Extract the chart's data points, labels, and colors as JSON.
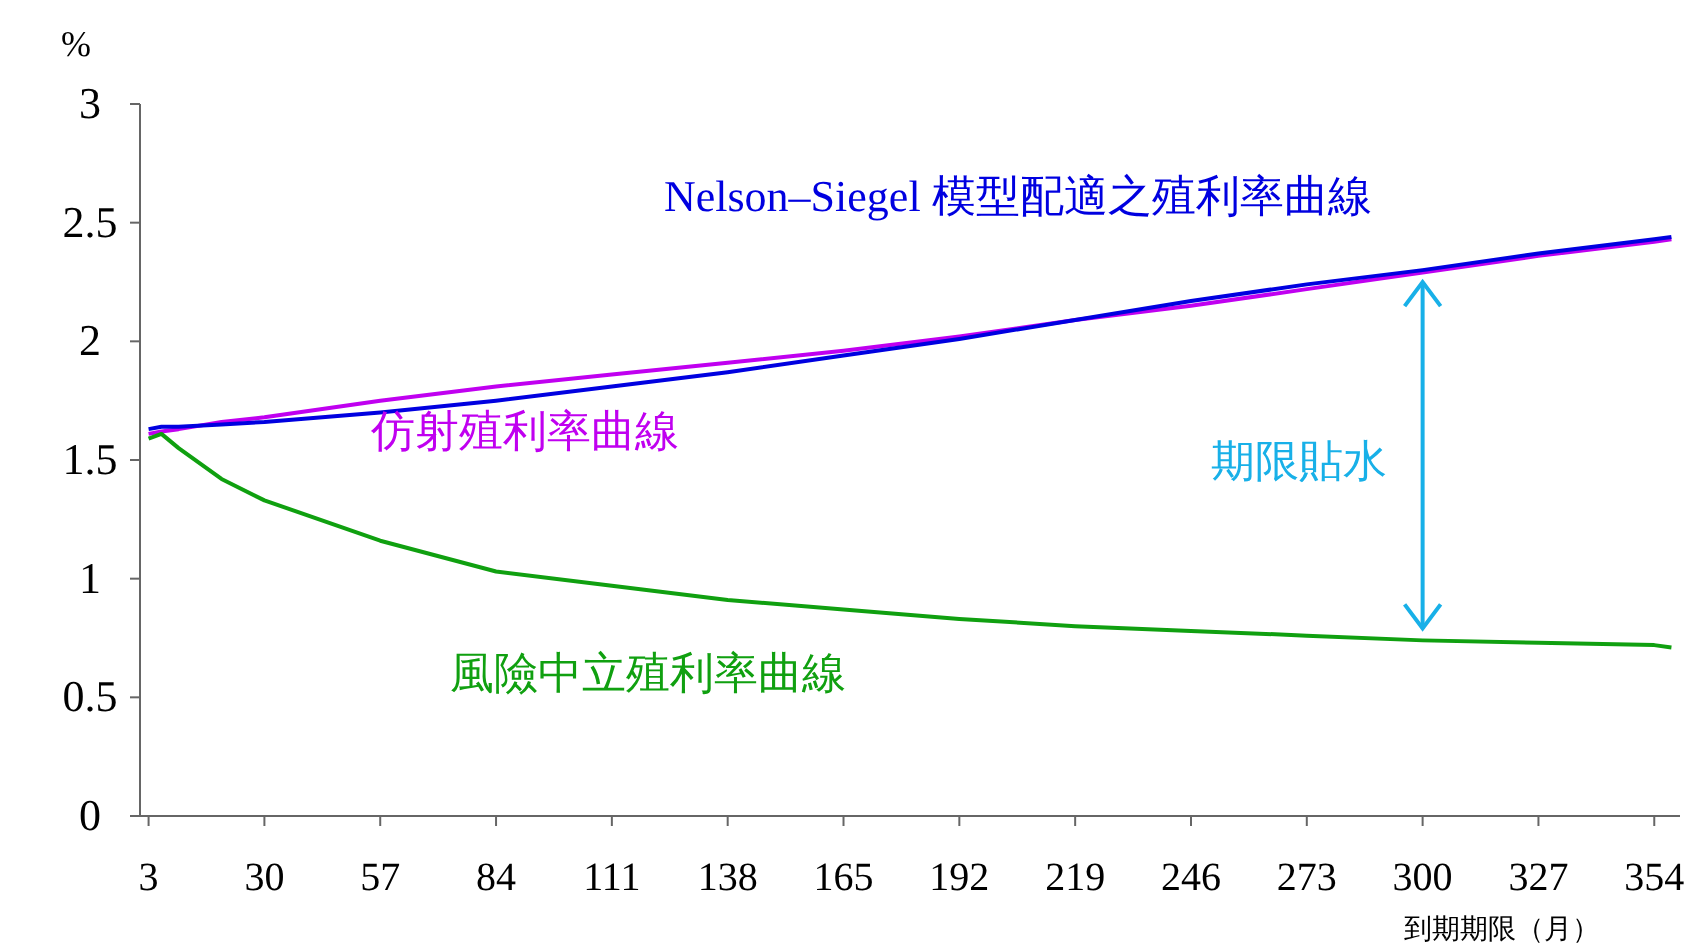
{
  "chart_data": {
    "type": "line",
    "xlabel": "到期期限（月）",
    "ylabel": "%",
    "x": [
      3,
      6,
      10,
      20,
      30,
      57,
      84,
      111,
      138,
      165,
      192,
      219,
      246,
      273,
      300,
      327,
      354,
      358
    ],
    "series": [
      {
        "name": "Nelson–Siegel 模型配適之殖利率曲線",
        "color": "#0000e0",
        "values": [
          1.63,
          1.64,
          1.64,
          1.65,
          1.66,
          1.7,
          1.75,
          1.81,
          1.87,
          1.94,
          2.01,
          2.09,
          2.17,
          2.24,
          2.3,
          2.37,
          2.43,
          2.44
        ]
      },
      {
        "name": "仿射殖利率曲線",
        "color": "#c000f0",
        "values": [
          1.61,
          1.62,
          1.63,
          1.66,
          1.68,
          1.75,
          1.81,
          1.86,
          1.91,
          1.96,
          2.02,
          2.09,
          2.15,
          2.22,
          2.29,
          2.36,
          2.42,
          2.43
        ]
      },
      {
        "name": "風險中立殖利率曲線",
        "color": "#10a010",
        "values": [
          1.59,
          1.61,
          1.55,
          1.42,
          1.33,
          1.16,
          1.03,
          0.97,
          0.91,
          0.87,
          0.83,
          0.8,
          0.78,
          0.76,
          0.74,
          0.73,
          0.72,
          0.71
        ]
      }
    ],
    "annotations": [
      "期限貼水"
    ],
    "xlim": [
      1,
      360
    ],
    "xticks": [
      3,
      30,
      57,
      84,
      111,
      138,
      165,
      192,
      219,
      246,
      273,
      300,
      327,
      354
    ],
    "ylim": [
      0,
      3
    ],
    "yticks": [
      0,
      0.5,
      1,
      1.5,
      2,
      2.5,
      3
    ],
    "grid": false,
    "legend": false,
    "marker": "none",
    "line_style": "solid"
  }
}
